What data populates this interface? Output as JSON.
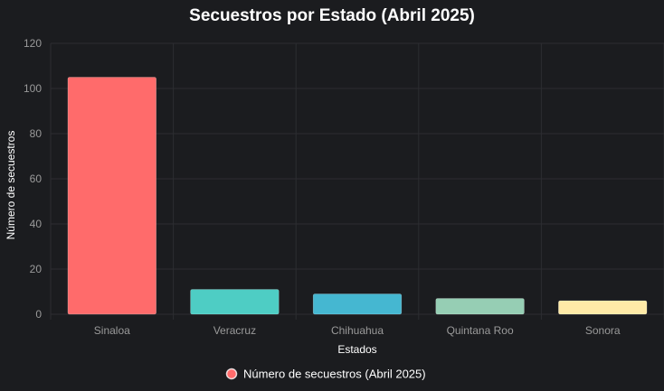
{
  "chart_data": {
    "type": "bar",
    "title": "Secuestros por Estado (Abril 2025)",
    "xlabel": "Estados",
    "ylabel": "Número de secuestros",
    "categories": [
      "Sinaloa",
      "Veracruz",
      "Chihuahua",
      "Quintana Roo",
      "Sonora"
    ],
    "series": [
      {
        "name": "Número de secuestros (Abril 2025)",
        "values": [
          105,
          11,
          9,
          7,
          6
        ]
      }
    ],
    "ylim": [
      0,
      120
    ],
    "yticks": [
      "0",
      "20",
      "40",
      "60",
      "80",
      "100",
      "120"
    ],
    "grid": true,
    "legend": "bottom",
    "colors": {
      "bars": [
        "#ff6b6b",
        "#4ecdc4",
        "#45b7d1",
        "#96ceb4",
        "#ffeaa7"
      ],
      "legend_marker": "#ff6b6b",
      "background": "#1b1c1f",
      "grid": "#2c2d31"
    }
  }
}
